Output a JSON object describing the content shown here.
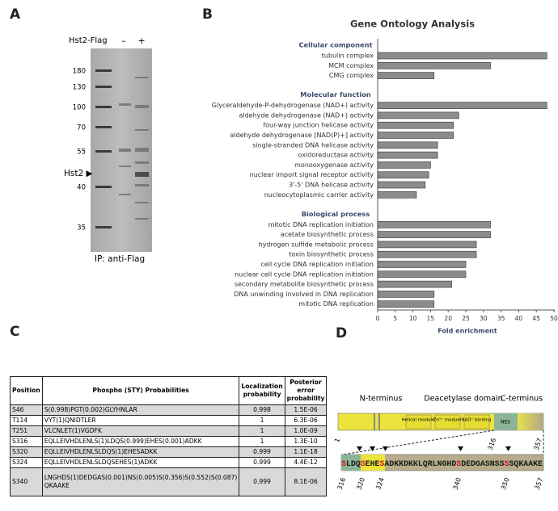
{
  "panel_a": {
    "letter": "A",
    "construct": "Hst2-Flag",
    "lanes": [
      "–",
      "+"
    ],
    "markers": [
      "180",
      "130",
      "100",
      "70",
      "55",
      "40",
      "35"
    ],
    "band_label": "Hst2 ▶",
    "caption": "IP: anti-Flag"
  },
  "chart_data": {
    "letter": "B",
    "type": "bar",
    "title": "Gene Ontology Analysis",
    "xlabel": "Fold enrichment",
    "color": "#8c8c8c",
    "xlim": [
      0,
      50
    ],
    "xticks": [
      0,
      5,
      10,
      15,
      20,
      25,
      30,
      35,
      40,
      45,
      50
    ],
    "groups": [
      {
        "name": "Cellular component",
        "categories": [
          "tubulin complex",
          "MCM complex",
          "CMG complex"
        ],
        "values": [
          48,
          32,
          16
        ]
      },
      {
        "name": "Molecular function",
        "categories": [
          "Glyceraldehyde-P-dehydrogenase (NAD+) activity",
          "aldehyde dehydrogenase (NAD+) activity",
          "four-way junction helicase activity",
          "aldehyde dehydrogenase [NAD(P)+] activity",
          "single-stranded DNA helicase activity",
          "oxidoreductase activity",
          "monooxygenase activity",
          "nuclear import signal receptor activity",
          "3'-5' DNA helicase activity",
          "nucleocytoplasmic carrier activity"
        ],
        "values": [
          48,
          23,
          21.5,
          21.5,
          17,
          17,
          15,
          14.5,
          13.5,
          11
        ]
      },
      {
        "name": "Biological process",
        "categories": [
          "mitotic DNA replication initiation",
          "acetate biosynthetic process",
          "hydrogen sulfide metabolic process",
          "toxin biosynthetic process",
          "cell cycle DNA replication initiation",
          "nuclear cell cycle DNA replication initiation",
          "secondary metabolite biosynthetic process",
          "DNA unwinding involved in DNA replication",
          "mitotic DNA replication"
        ],
        "values": [
          32,
          32,
          28,
          28,
          25,
          25,
          21,
          16,
          16
        ]
      }
    ]
  },
  "panel_c": {
    "letter": "C",
    "table": {
      "header": [
        "Position",
        "Phospho (STY) Probabilities",
        "Localization probability",
        "Posterior error probability"
      ],
      "rows": [
        [
          "S46",
          "S(0.998)PGT(0.002)GLYHNLAR",
          "0.998",
          "1.5E-06"
        ],
        [
          "T114",
          "VYT(1)QNIDTLER",
          "1",
          "6.3E-06"
        ],
        [
          "T251",
          "VLCNLET(1)VGDFK",
          "1",
          "1.0E-09"
        ],
        [
          "S316",
          "EQLLEIVHDLENLS(1)LDQS(0.999)EHES(0.001)ADKK",
          "1",
          "1.3E-10"
        ],
        [
          "S320",
          "EQLLEIVHDLENLSLDQS(1)EHESADKK",
          "0.999",
          "1.1E-18"
        ],
        [
          "S324",
          "EQLLEIVHDLENLSLDQSEHES(1)ADKK",
          "0.999",
          "4.4E-12"
        ],
        [
          "S340",
          "LNGHDS(1)DEDGAS(0.001)NS(0.005)S(0.356)S(0.552)S(0.087) QKAAKE",
          "0.999",
          "8.1E-06"
        ]
      ]
    }
  },
  "panel_d": {
    "letter": "D",
    "regions": [
      "N-terminus",
      "Deacetylase domain",
      "C-terminus"
    ],
    "modules": [
      "Helical module",
      "Zn²⁺ module",
      "NAD⁺ binding",
      "NES"
    ],
    "domain_ticks": [
      "1",
      "316",
      "357"
    ],
    "sequence_segments": [
      {
        "text": "S",
        "phospho": true
      },
      {
        "text": "LDQ",
        "phospho": false
      },
      {
        "text": "S",
        "phospho": true
      },
      {
        "text": "EHE",
        "phospho": false
      },
      {
        "text": "S",
        "phospho": true
      },
      {
        "text": "ADKKDKKLQRLNGHD",
        "phospho": false
      },
      {
        "text": "S",
        "phospho": true
      },
      {
        "text": "DEDGASNSS",
        "phospho": false
      },
      {
        "text": "S",
        "phospho": true
      },
      {
        "text": "SQKAAKE",
        "phospho": false
      }
    ],
    "sequence_start": 316,
    "position_labels": [
      316,
      320,
      324,
      340,
      350,
      357
    ]
  }
}
